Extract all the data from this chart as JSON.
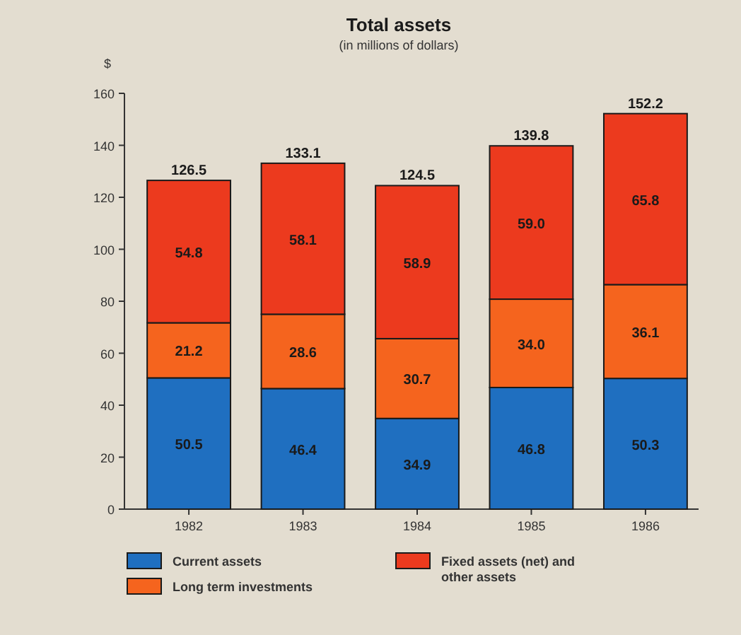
{
  "chart_data": {
    "type": "bar",
    "title": "Total assets",
    "subtitle": "(in millions of dollars)",
    "ylabel": "$",
    "categories": [
      "1982",
      "1983",
      "1984",
      "1985",
      "1986"
    ],
    "series": [
      {
        "name": "Current assets",
        "color": "#1f6fc0",
        "values": [
          50.5,
          46.4,
          34.9,
          46.8,
          50.3
        ],
        "value_labels": [
          "50.5",
          "46.4",
          "34.9",
          "46.8",
          "50.3"
        ]
      },
      {
        "name": "Long term investments",
        "color": "#f5641e",
        "values": [
          21.2,
          28.6,
          30.7,
          34.0,
          36.1
        ],
        "value_labels": [
          "21.2",
          "28.6",
          "30.7",
          "34.0",
          "36.1"
        ]
      },
      {
        "name": "Fixed assets (net) and other assets",
        "color": "#ec3a1e",
        "values": [
          54.8,
          58.1,
          58.9,
          59.0,
          65.8
        ],
        "value_labels": [
          "54.8",
          "58.1",
          "58.9",
          "59.0",
          "65.8"
        ]
      }
    ],
    "stacked": true,
    "totals": [
      "126.5",
      "133.1",
      "124.5",
      "139.8",
      "152.2"
    ],
    "ylim": [
      0,
      160
    ],
    "yticks": [
      0,
      20,
      40,
      60,
      80,
      100,
      120,
      140,
      160
    ],
    "grid": false,
    "legend": "bottom"
  }
}
